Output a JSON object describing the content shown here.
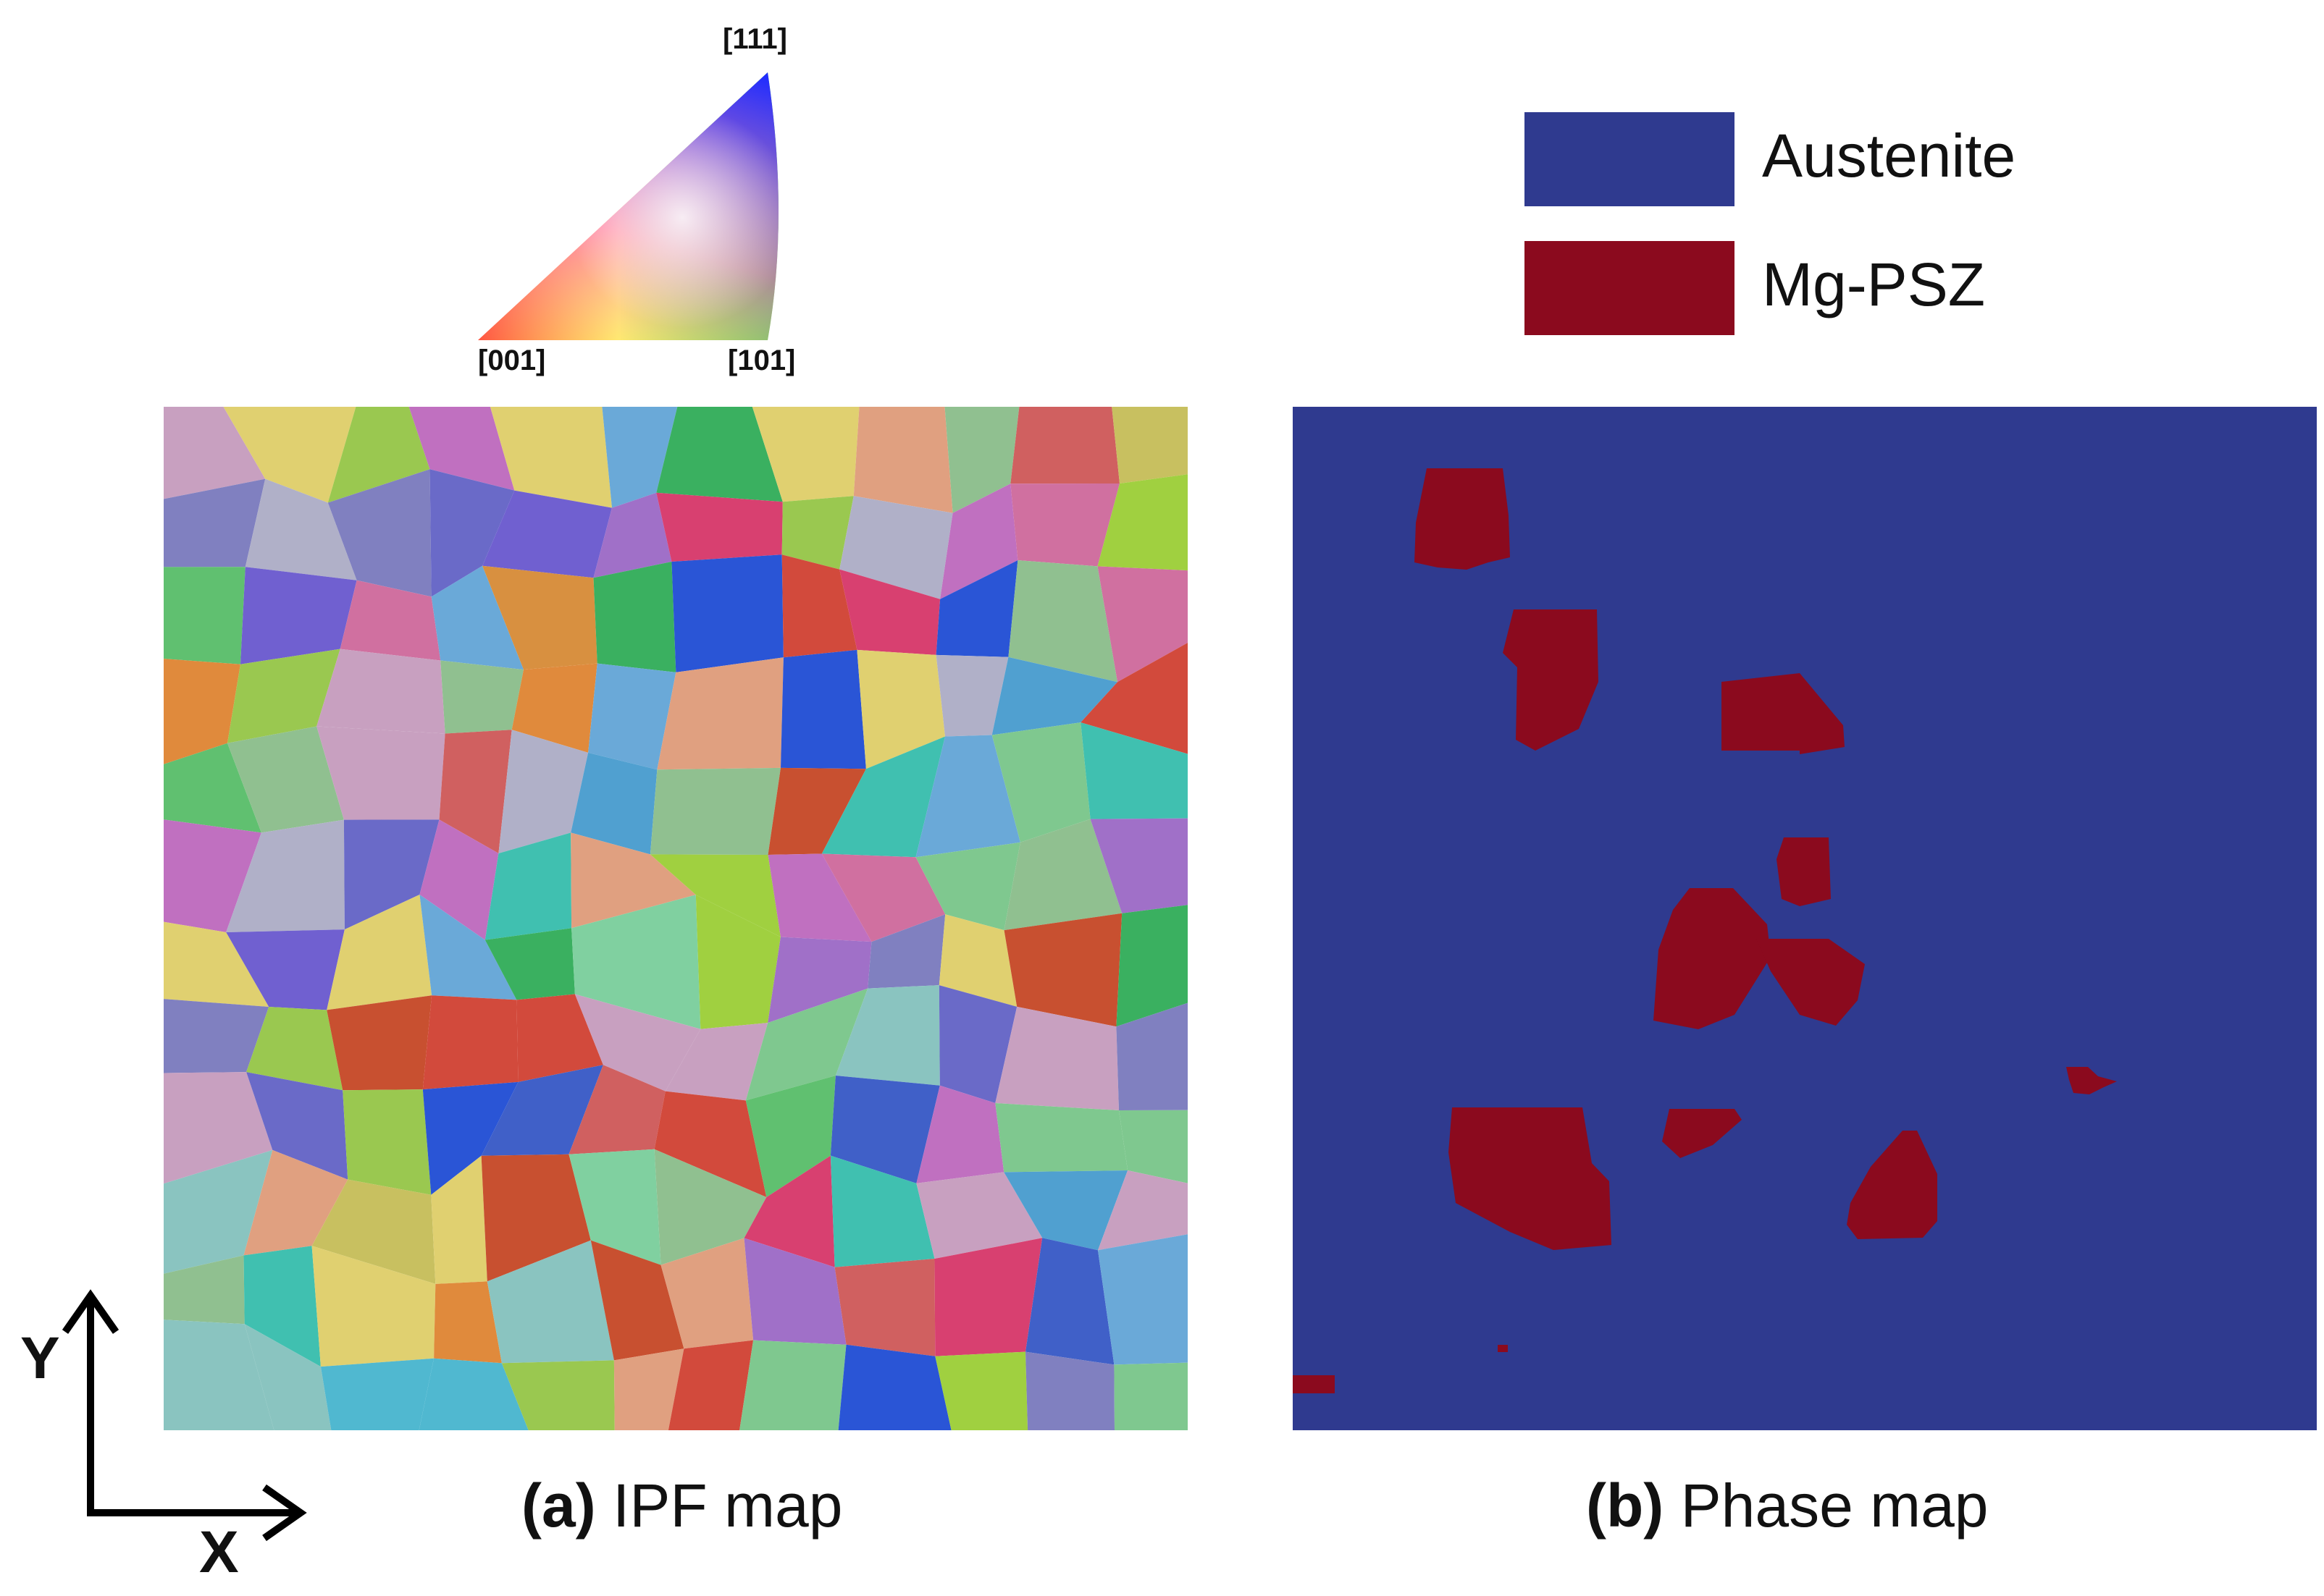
{
  "ipf_key": {
    "corners": {
      "top": "[111]",
      "bottom_left": "[001]",
      "bottom_right": "[101]"
    }
  },
  "legend": {
    "items": [
      {
        "label": "Austenite",
        "color": "#2f3a8f"
      },
      {
        "label": "Mg-PSZ",
        "color": "#8b0a1e"
      }
    ]
  },
  "captions": {
    "a": {
      "letter": "(a)",
      "text": " IPF map"
    },
    "b": {
      "letter": "(b)",
      "text": " Phase map"
    }
  },
  "axes": {
    "x": "X",
    "y": "Y"
  }
}
